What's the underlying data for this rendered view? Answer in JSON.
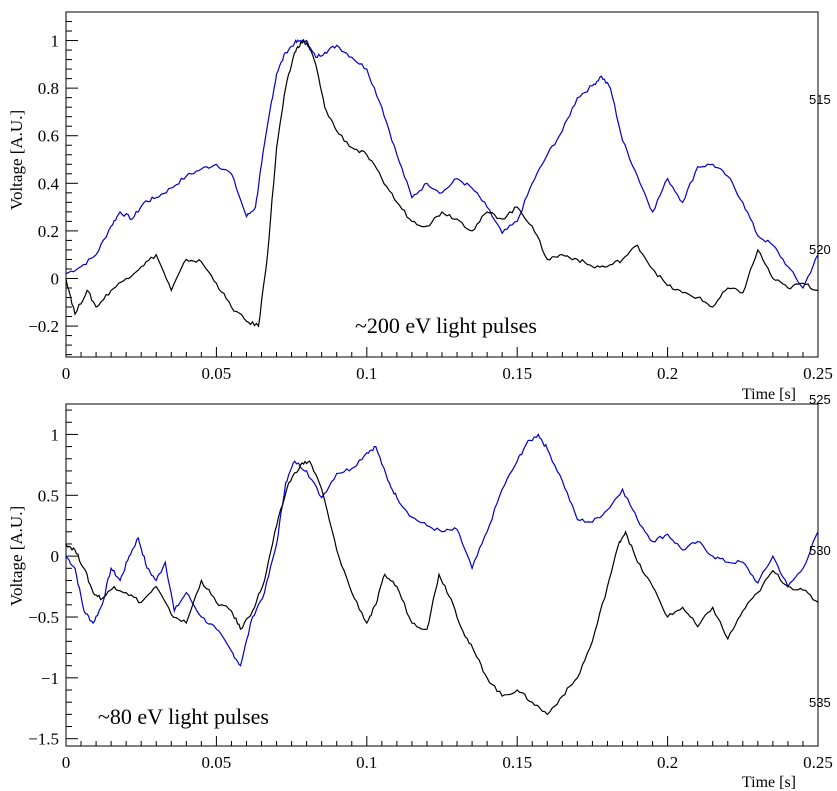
{
  "chart_data": [
    {
      "type": "line",
      "xlabel": "Time [s]",
      "ylabel": "Voltage [A.U.]",
      "annotation": "~200 eV light pulses",
      "xlim": [
        0,
        0.25
      ],
      "ylim": [
        -0.33,
        1.12
      ],
      "xticks": [
        0,
        0.05,
        0.1,
        0.15,
        0.2,
        0.25
      ],
      "xtick_labels": [
        "0",
        "0.05",
        "0.1",
        "0.15",
        "0.2",
        "0.25"
      ],
      "yticks": [
        -0.2,
        0,
        0.2,
        0.4,
        0.6,
        0.8,
        1
      ],
      "ytick_labels": [
        "−0.2",
        "0",
        "0.2",
        "0.4",
        "0.6",
        "0.8",
        "1"
      ],
      "grid": false,
      "series": [
        {
          "color": "#0000cc",
          "x": [
            0,
            0.005,
            0.01,
            0.015,
            0.018,
            0.022,
            0.026,
            0.03,
            0.035,
            0.04,
            0.045,
            0.05,
            0.055,
            0.06,
            0.063,
            0.065,
            0.068,
            0.07,
            0.073,
            0.076,
            0.078,
            0.08,
            0.083,
            0.086,
            0.09,
            0.095,
            0.1,
            0.105,
            0.11,
            0.115,
            0.12,
            0.125,
            0.13,
            0.135,
            0.14,
            0.145,
            0.15,
            0.155,
            0.16,
            0.165,
            0.17,
            0.175,
            0.178,
            0.181,
            0.185,
            0.19,
            0.195,
            0.2,
            0.205,
            0.21,
            0.215,
            0.22,
            0.225,
            0.23,
            0.235,
            0.24,
            0.245,
            0.25
          ],
          "y": [
            0.02,
            0.05,
            0.1,
            0.22,
            0.28,
            0.25,
            0.32,
            0.34,
            0.38,
            0.43,
            0.46,
            0.48,
            0.44,
            0.26,
            0.3,
            0.48,
            0.72,
            0.86,
            0.95,
            0.99,
            1.0,
            0.99,
            0.93,
            0.95,
            0.98,
            0.93,
            0.88,
            0.72,
            0.52,
            0.34,
            0.4,
            0.36,
            0.42,
            0.38,
            0.3,
            0.19,
            0.24,
            0.4,
            0.52,
            0.62,
            0.76,
            0.81,
            0.85,
            0.8,
            0.58,
            0.43,
            0.28,
            0.42,
            0.32,
            0.47,
            0.48,
            0.43,
            0.32,
            0.18,
            0.14,
            0.05,
            -0.04,
            0.1
          ]
        },
        {
          "color": "#000000",
          "x": [
            0,
            0.003,
            0.007,
            0.01,
            0.015,
            0.02,
            0.025,
            0.03,
            0.035,
            0.04,
            0.045,
            0.05,
            0.055,
            0.06,
            0.064,
            0.067,
            0.07,
            0.073,
            0.076,
            0.078,
            0.08,
            0.083,
            0.086,
            0.09,
            0.095,
            0.1,
            0.105,
            0.11,
            0.115,
            0.12,
            0.125,
            0.13,
            0.135,
            0.14,
            0.145,
            0.15,
            0.155,
            0.16,
            0.165,
            0.17,
            0.175,
            0.18,
            0.185,
            0.19,
            0.195,
            0.2,
            0.205,
            0.21,
            0.215,
            0.22,
            0.225,
            0.23,
            0.235,
            0.24,
            0.245,
            0.25
          ],
          "y": [
            0.0,
            -0.15,
            -0.05,
            -0.12,
            -0.05,
            0.0,
            0.05,
            0.1,
            -0.05,
            0.08,
            0.07,
            -0.02,
            -0.12,
            -0.18,
            -0.2,
            0.1,
            0.55,
            0.8,
            0.95,
            0.99,
            1.0,
            0.9,
            0.72,
            0.62,
            0.55,
            0.52,
            0.42,
            0.32,
            0.24,
            0.22,
            0.28,
            0.25,
            0.2,
            0.28,
            0.25,
            0.3,
            0.22,
            0.08,
            0.1,
            0.08,
            0.05,
            0.05,
            0.08,
            0.14,
            0.04,
            -0.03,
            -0.06,
            -0.08,
            -0.12,
            -0.04,
            -0.06,
            0.12,
            0.0,
            -0.04,
            -0.02,
            -0.05
          ]
        }
      ]
    },
    {
      "type": "line",
      "xlabel": "Time [s]",
      "ylabel": "Voltage [A.U.]",
      "annotation": "~80 eV light pulses",
      "xlim": [
        0,
        0.25
      ],
      "ylim": [
        -1.56,
        1.25
      ],
      "xticks": [
        0,
        0.05,
        0.1,
        0.15,
        0.2,
        0.25
      ],
      "xtick_labels": [
        "0",
        "0.05",
        "0.1",
        "0.15",
        "0.2",
        "0.25"
      ],
      "yticks": [
        -1.5,
        -1,
        -0.5,
        0,
        0.5,
        1
      ],
      "ytick_labels": [
        "−1.5",
        "−1",
        "−0.5",
        "0",
        "0.5",
        "1"
      ],
      "grid": false,
      "series": [
        {
          "color": "#0000cc",
          "x": [
            0,
            0.003,
            0.006,
            0.009,
            0.012,
            0.015,
            0.018,
            0.021,
            0.024,
            0.027,
            0.03,
            0.033,
            0.036,
            0.04,
            0.045,
            0.05,
            0.055,
            0.058,
            0.062,
            0.066,
            0.07,
            0.073,
            0.076,
            0.08,
            0.085,
            0.09,
            0.095,
            0.1,
            0.103,
            0.107,
            0.11,
            0.115,
            0.12,
            0.125,
            0.13,
            0.135,
            0.14,
            0.145,
            0.15,
            0.153,
            0.157,
            0.16,
            0.165,
            0.17,
            0.175,
            0.18,
            0.185,
            0.19,
            0.195,
            0.2,
            0.205,
            0.21,
            0.215,
            0.22,
            0.225,
            0.23,
            0.235,
            0.24,
            0.245,
            0.25
          ],
          "y": [
            0.0,
            -0.1,
            -0.45,
            -0.55,
            -0.4,
            -0.1,
            -0.2,
            0.0,
            0.15,
            -0.1,
            -0.2,
            -0.05,
            -0.45,
            -0.3,
            -0.5,
            -0.6,
            -0.78,
            -0.9,
            -0.5,
            -0.3,
            0.1,
            0.6,
            0.78,
            0.7,
            0.48,
            0.68,
            0.72,
            0.85,
            0.9,
            0.62,
            0.48,
            0.32,
            0.25,
            0.2,
            0.22,
            -0.1,
            0.2,
            0.55,
            0.78,
            0.92,
            1.0,
            0.88,
            0.62,
            0.3,
            0.28,
            0.38,
            0.55,
            0.3,
            0.12,
            0.18,
            0.05,
            0.12,
            0.0,
            -0.05,
            -0.05,
            -0.22,
            0.0,
            -0.25,
            -0.1,
            0.2
          ]
        },
        {
          "color": "#000000",
          "x": [
            0,
            0.003,
            0.006,
            0.009,
            0.012,
            0.016,
            0.02,
            0.025,
            0.03,
            0.035,
            0.04,
            0.045,
            0.05,
            0.055,
            0.058,
            0.062,
            0.066,
            0.07,
            0.074,
            0.078,
            0.081,
            0.085,
            0.09,
            0.095,
            0.1,
            0.103,
            0.106,
            0.11,
            0.115,
            0.12,
            0.124,
            0.128,
            0.132,
            0.136,
            0.14,
            0.145,
            0.15,
            0.155,
            0.16,
            0.165,
            0.17,
            0.175,
            0.18,
            0.184,
            0.186,
            0.19,
            0.195,
            0.2,
            0.205,
            0.21,
            0.215,
            0.22,
            0.225,
            0.23,
            0.235,
            0.24,
            0.245,
            0.25
          ],
          "y": [
            0.1,
            0.05,
            -0.1,
            -0.3,
            -0.35,
            -0.25,
            -0.3,
            -0.38,
            -0.25,
            -0.48,
            -0.55,
            -0.2,
            -0.38,
            -0.45,
            -0.6,
            -0.45,
            -0.2,
            0.25,
            0.6,
            0.75,
            0.78,
            0.55,
            0.05,
            -0.3,
            -0.55,
            -0.4,
            -0.15,
            -0.25,
            -0.55,
            -0.6,
            -0.15,
            -0.35,
            -0.62,
            -0.8,
            -1.0,
            -1.15,
            -1.1,
            -1.2,
            -1.3,
            -1.15,
            -1.0,
            -0.7,
            -0.25,
            0.12,
            0.2,
            -0.05,
            -0.25,
            -0.5,
            -0.42,
            -0.58,
            -0.42,
            -0.68,
            -0.45,
            -0.3,
            -0.12,
            -0.25,
            -0.28,
            -0.38
          ]
        }
      ]
    }
  ],
  "margin_numbers": [
    "515",
    "520",
    "525",
    "530",
    "535"
  ]
}
